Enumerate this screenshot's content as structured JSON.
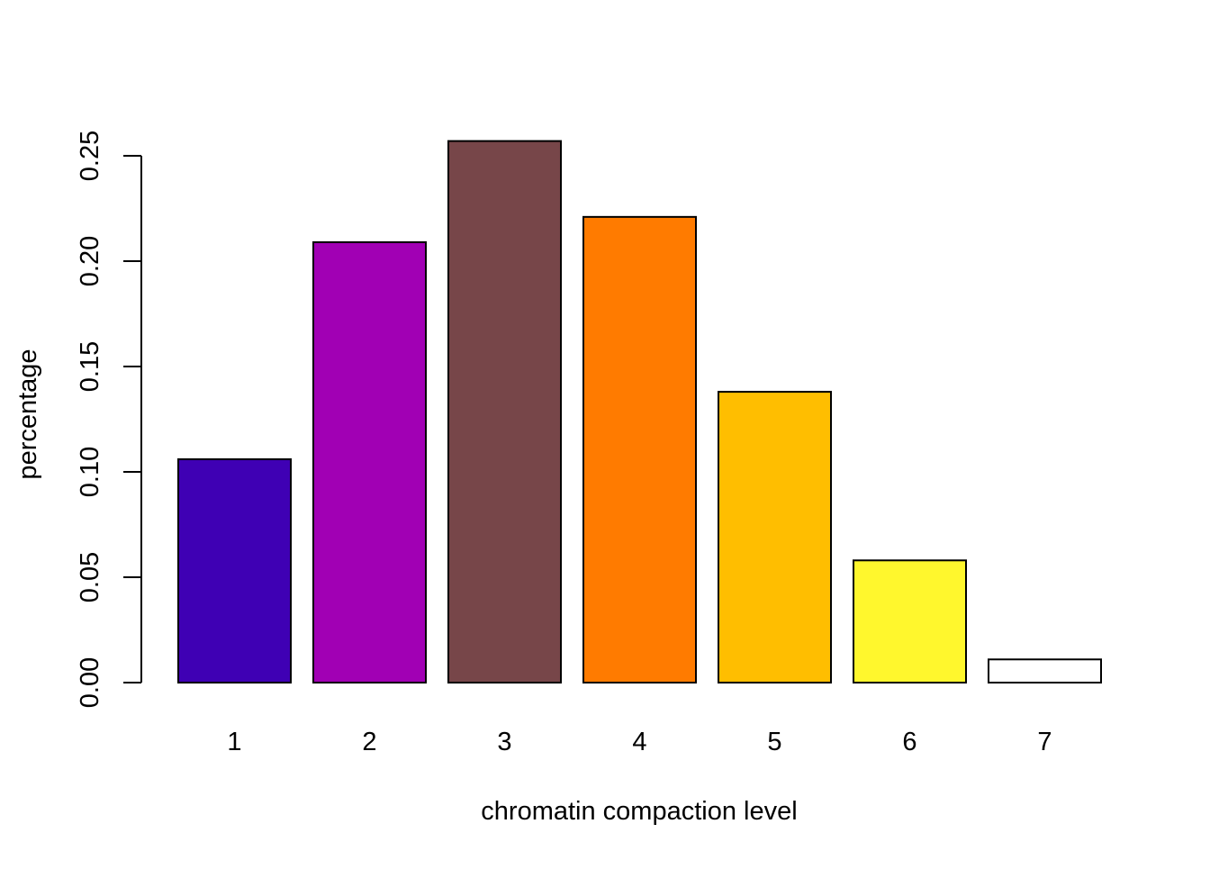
{
  "chart_data": {
    "type": "bar",
    "title": "",
    "xlabel": "chromatin compaction level",
    "ylabel": "percentage",
    "categories": [
      "1",
      "2",
      "3",
      "4",
      "5",
      "6",
      "7"
    ],
    "values": [
      0.106,
      0.209,
      0.257,
      0.221,
      0.138,
      0.058,
      0.011
    ],
    "colors": [
      "#3f00b4",
      "#a100b4",
      "#774649",
      "#ff7b00",
      "#ffbe00",
      "#fff72d",
      "#ffffff"
    ],
    "bar_border_color": "#000000",
    "ylim": [
      0,
      0.25
    ],
    "yticks": [
      0.0,
      0.05,
      0.1,
      0.15,
      0.2,
      0.25
    ],
    "ytick_labels": [
      "0.00",
      "0.05",
      "0.10",
      "0.15",
      "0.20",
      "0.25"
    ],
    "grid": false,
    "legend": "none"
  }
}
